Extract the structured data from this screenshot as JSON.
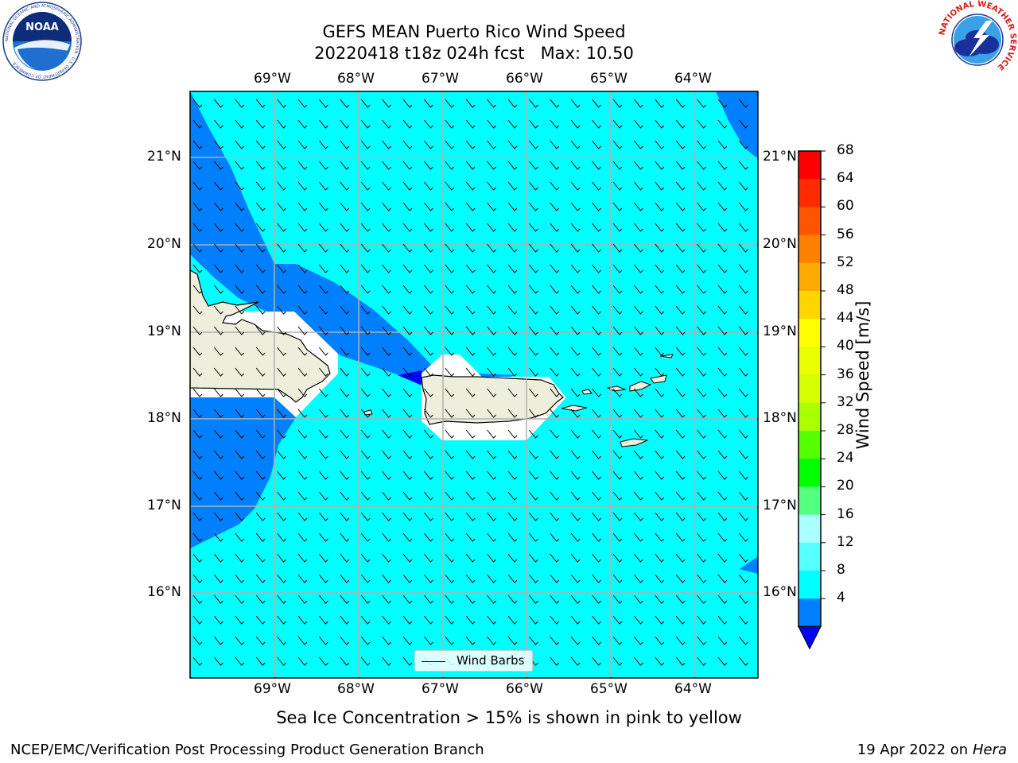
{
  "title": {
    "line1": "GEFS MEAN Puerto Rico Wind Speed",
    "line2": "20220418 t18z 024h fcst   Max: 10.50"
  },
  "logos": {
    "noaa_text": "NOAA",
    "noaa_ring": "NATIONAL OCEANIC AND ATMOSPHERIC ADMINISTRATION · U.S. DEPARTMENT OF COMMERCE",
    "nws_ring": "NATIONAL WEATHER SERVICE"
  },
  "map": {
    "lon_labels": [
      "69°W",
      "68°W",
      "67°W",
      "66°W",
      "65°W",
      "64°W"
    ],
    "lat_labels": [
      "21°N",
      "20°N",
      "19°N",
      "18°N",
      "17°N",
      "16°N"
    ],
    "legend_label": "Wind Barbs",
    "colors": {
      "ocean_light": "#00ffff",
      "ocean_dark": "#0080ff",
      "land": "#eeeedd",
      "grid": "#b0b0b0"
    }
  },
  "colorbar": {
    "label": "Wind Speed [m/s]",
    "ticks": [
      "68",
      "64",
      "60",
      "56",
      "52",
      "48",
      "44",
      "40",
      "36",
      "32",
      "28",
      "24",
      "20",
      "16",
      "12",
      "8",
      "4"
    ],
    "colors": [
      "#ff0000",
      "#ff2a00",
      "#ff5500",
      "#ff8000",
      "#ffaa00",
      "#ffd400",
      "#ffff00",
      "#eaff00",
      "#d4ff00",
      "#aaff00",
      "#55ff00",
      "#00ff00",
      "#55ff80",
      "#aaffff",
      "#55ffff",
      "#00ffff",
      "#0080ff"
    ],
    "extend_color": "#0000ff"
  },
  "caption": "Sea Ice Concentration > 15% is shown in pink to yellow",
  "footer": {
    "left": "NCEP/EMC/Verification Post Processing Product Generation Branch",
    "right_date": "19 Apr 2022 on ",
    "right_host": "Hera"
  }
}
